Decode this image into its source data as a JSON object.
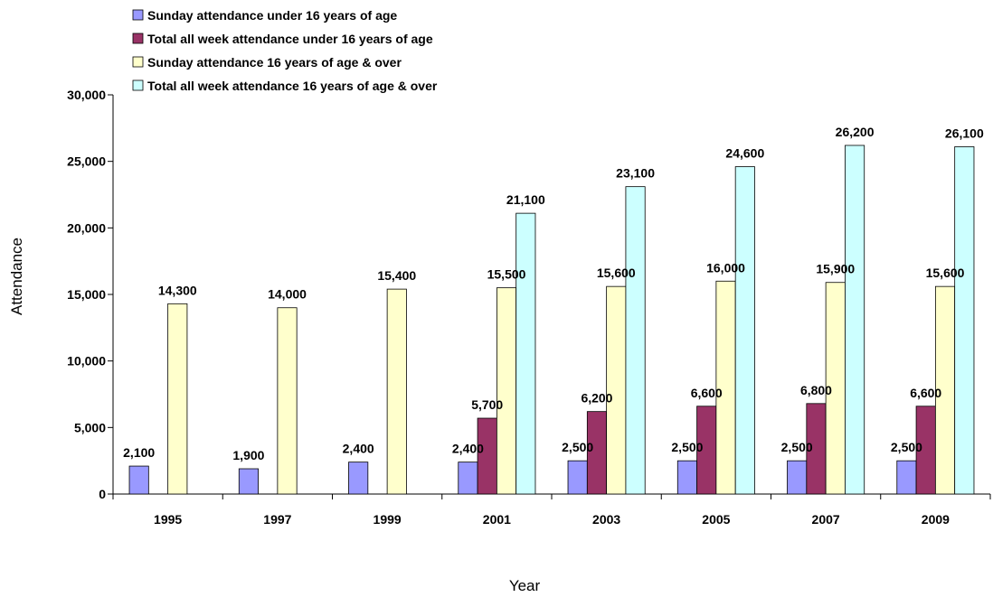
{
  "chart_data": {
    "type": "bar",
    "xlabel": "Year",
    "ylabel": "Attendance",
    "ylim": [
      0,
      30000
    ],
    "yticks": [
      0,
      5000,
      10000,
      15000,
      20000,
      25000,
      30000
    ],
    "ytick_labels": [
      "0",
      "5,000",
      "10,000",
      "15,000",
      "20,000",
      "25,000",
      "30,000"
    ],
    "grid": false,
    "legend_position": "top-left",
    "categories": [
      "1995",
      "1997",
      "1999",
      "2001",
      "2003",
      "2005",
      "2007",
      "2009"
    ],
    "series": [
      {
        "name": "Sunday attendance under 16 years of age",
        "color": "#9999ff",
        "values": [
          2100,
          1900,
          2400,
          2400,
          2500,
          2500,
          2500,
          2500
        ],
        "labels": [
          "2,100",
          "1,900",
          "2,400",
          "2,400",
          "2,500",
          "2,500",
          "2,500",
          "2,500"
        ]
      },
      {
        "name": "Total all week attendance under 16 years of age",
        "color": "#993366",
        "values": [
          null,
          null,
          null,
          5700,
          6200,
          6600,
          6800,
          6600
        ],
        "labels": [
          "",
          "",
          "",
          "5,700",
          "6,200",
          "6,600",
          "6,800",
          "6,600"
        ]
      },
      {
        "name": "Sunday attendance 16 years of age & over",
        "color": "#ffffcc",
        "values": [
          14300,
          14000,
          15400,
          15500,
          15600,
          16000,
          15900,
          15600
        ],
        "labels": [
          "14,300",
          "14,000",
          "15,400",
          "15,500",
          "15,600",
          "16,000",
          "15,900",
          "15,600"
        ]
      },
      {
        "name": "Total all week attendance 16 years of age & over",
        "color": "#ccffff",
        "values": [
          null,
          null,
          null,
          21100,
          23100,
          24600,
          26200,
          26100
        ],
        "labels": [
          "",
          "",
          "",
          "21,100",
          "23,100",
          "24,600",
          "26,200",
          "26,100"
        ]
      }
    ]
  }
}
